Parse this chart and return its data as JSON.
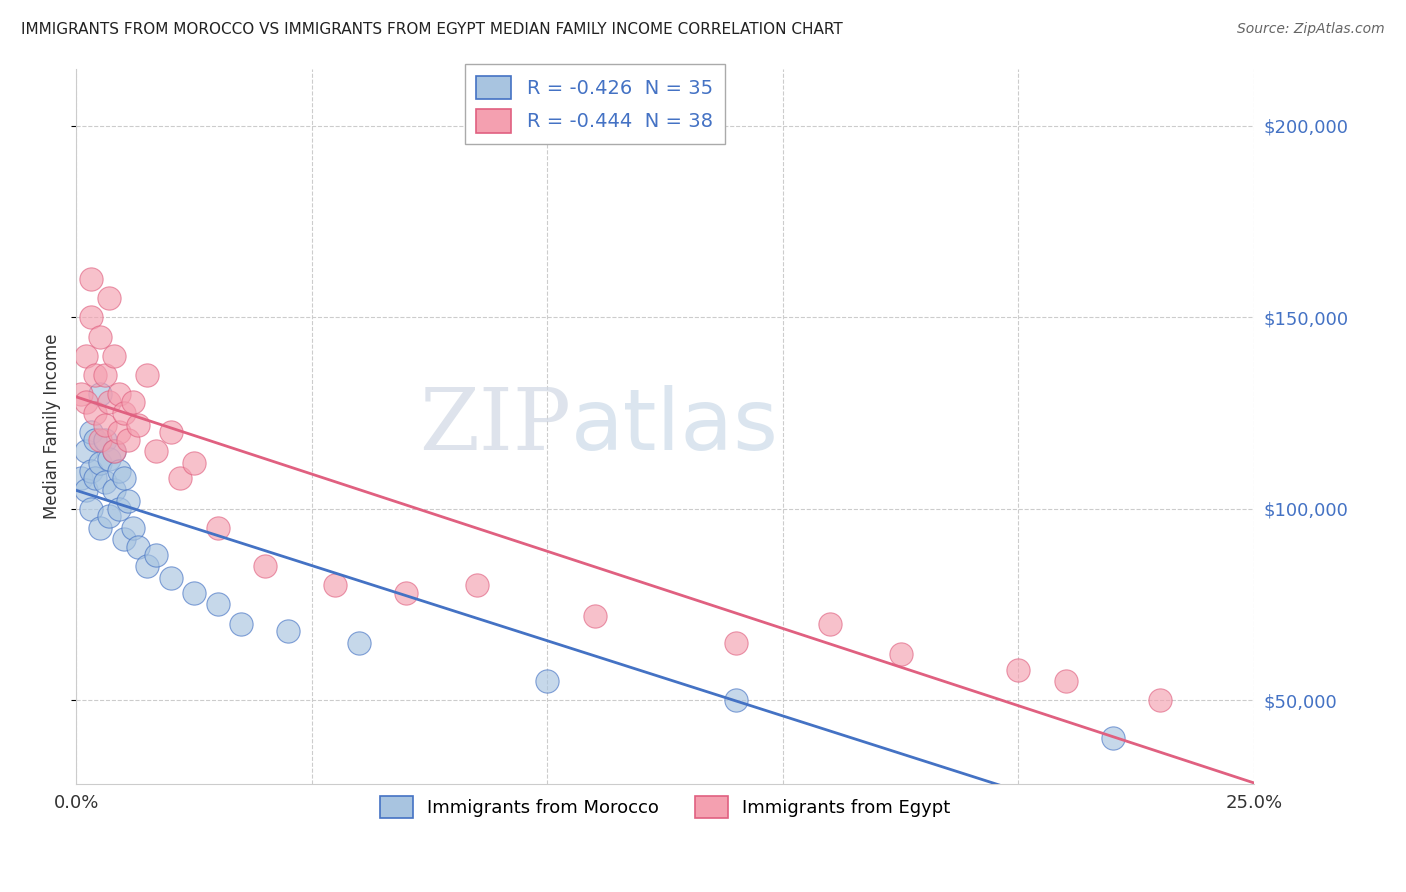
{
  "title": "IMMIGRANTS FROM MOROCCO VS IMMIGRANTS FROM EGYPT MEDIAN FAMILY INCOME CORRELATION CHART",
  "source": "Source: ZipAtlas.com",
  "ylabel": "Median Family Income",
  "xlim": [
    0.0,
    0.25
  ],
  "ylim": [
    28000,
    215000
  ],
  "xticks": [
    0.0,
    0.05,
    0.1,
    0.15,
    0.2,
    0.25
  ],
  "xtick_labels": [
    "0.0%",
    "",
    "",
    "",
    "",
    "25.0%"
  ],
  "ytick_labels": [
    "$50,000",
    "$100,000",
    "$150,000",
    "$200,000"
  ],
  "yticks": [
    50000,
    100000,
    150000,
    200000
  ],
  "legend_r1": "R = -0.426  N = 35",
  "legend_r2": "R = -0.444  N = 38",
  "color_morocco": "#a8c4e0",
  "color_egypt": "#f4a0b0",
  "line_color_morocco": "#4472c4",
  "line_color_egypt": "#e06080",
  "watermark_zip": "ZIP",
  "watermark_atlas": "atlas",
  "legend_label1": "Immigrants from Morocco",
  "legend_label2": "Immigrants from Egypt",
  "morocco_x": [
    0.001,
    0.002,
    0.002,
    0.003,
    0.003,
    0.003,
    0.004,
    0.004,
    0.005,
    0.005,
    0.005,
    0.006,
    0.006,
    0.007,
    0.007,
    0.008,
    0.008,
    0.009,
    0.009,
    0.01,
    0.01,
    0.011,
    0.012,
    0.013,
    0.015,
    0.017,
    0.02,
    0.025,
    0.03,
    0.035,
    0.045,
    0.06,
    0.1,
    0.14,
    0.22
  ],
  "morocco_y": [
    108000,
    115000,
    105000,
    120000,
    110000,
    100000,
    118000,
    108000,
    130000,
    112000,
    95000,
    118000,
    107000,
    113000,
    98000,
    115000,
    105000,
    110000,
    100000,
    108000,
    92000,
    102000,
    95000,
    90000,
    85000,
    88000,
    82000,
    78000,
    75000,
    70000,
    68000,
    65000,
    55000,
    50000,
    40000
  ],
  "egypt_x": [
    0.001,
    0.002,
    0.002,
    0.003,
    0.003,
    0.004,
    0.004,
    0.005,
    0.005,
    0.006,
    0.006,
    0.007,
    0.007,
    0.008,
    0.008,
    0.009,
    0.009,
    0.01,
    0.011,
    0.012,
    0.013,
    0.015,
    0.017,
    0.02,
    0.022,
    0.025,
    0.03,
    0.04,
    0.055,
    0.07,
    0.085,
    0.11,
    0.14,
    0.16,
    0.175,
    0.2,
    0.21,
    0.23
  ],
  "egypt_y": [
    130000,
    128000,
    140000,
    160000,
    150000,
    135000,
    125000,
    145000,
    118000,
    135000,
    122000,
    155000,
    128000,
    140000,
    115000,
    130000,
    120000,
    125000,
    118000,
    128000,
    122000,
    135000,
    115000,
    120000,
    108000,
    112000,
    95000,
    85000,
    80000,
    78000,
    80000,
    72000,
    65000,
    70000,
    62000,
    58000,
    55000,
    50000
  ]
}
